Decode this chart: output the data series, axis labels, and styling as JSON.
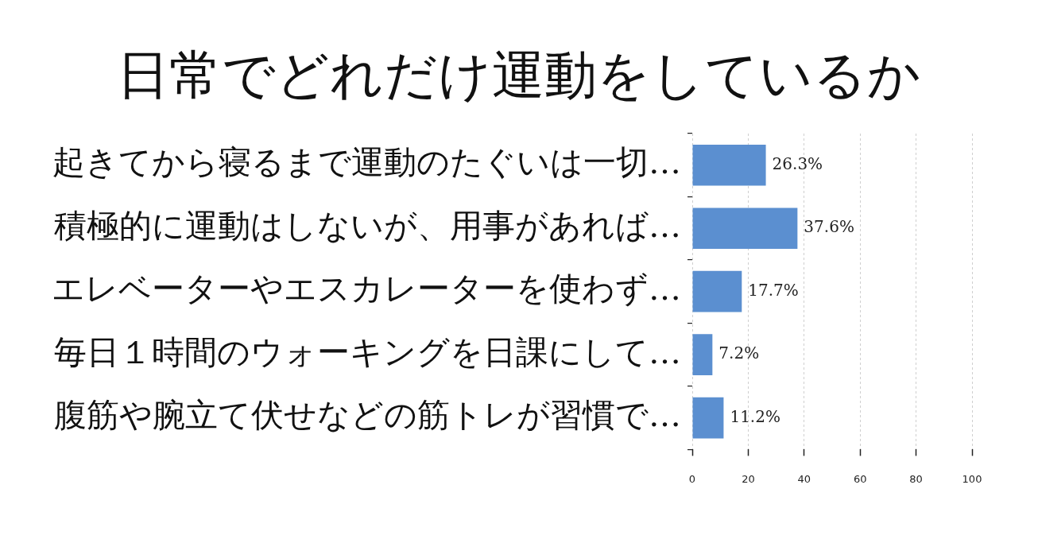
{
  "chart_data": {
    "type": "bar",
    "orientation": "horizontal",
    "title": "日常でどれだけ運動をしているか",
    "categories": [
      "起きてから寝るまで運動のたぐいは一切…",
      "積極的に運動はしないが、用事があれば…",
      "エレベーターやエスカレーターを使わず…",
      "毎日１時間のウォーキングを日課にして…",
      "腹筋や腕立て伏せなどの筋トレが習慣で…"
    ],
    "values": [
      26.3,
      37.6,
      17.7,
      7.2,
      11.2
    ],
    "value_labels": [
      "26.3%",
      "37.6%",
      "17.7%",
      "7.2%",
      "11.2%"
    ],
    "color": "#5b8fd0",
    "xlim": [
      0,
      100
    ],
    "xticks": [
      0,
      20,
      40,
      60,
      80,
      100
    ],
    "grid": "x"
  }
}
